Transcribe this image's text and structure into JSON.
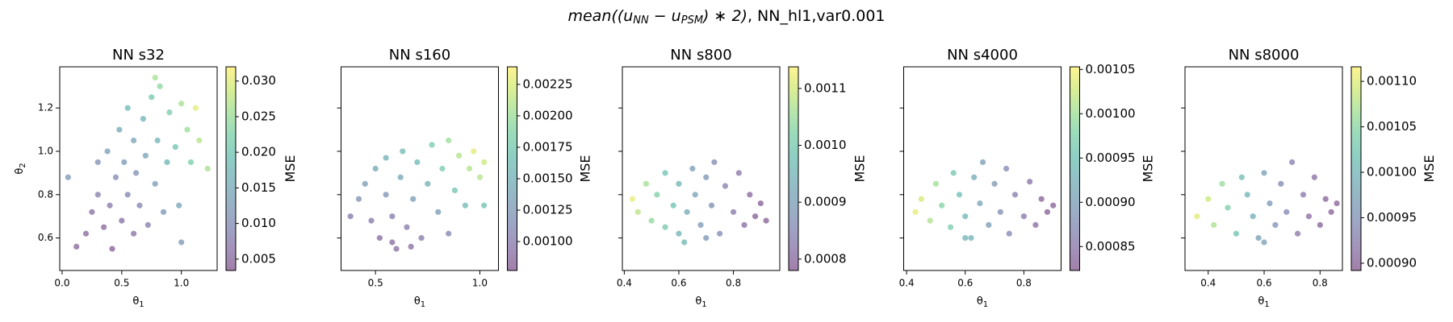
{
  "title": [
    {
      "text": "mean((u",
      "italic": true
    },
    {
      "text": "NN",
      "italic": true,
      "sub": true
    },
    {
      "text": " − u",
      "italic": true
    },
    {
      "text": "PSM",
      "italic": true,
      "sub": true
    },
    {
      "text": ") ∗ 2)",
      "italic": true
    },
    {
      "text": ", NN_hl1,var0.001",
      "italic": false
    }
  ],
  "chart_data": [
    {
      "type": "scatter",
      "title": "NN s32",
      "cmap": "viridis",
      "alpha": 0.5,
      "xlabel": {
        "text": "θ",
        "sub": "1"
      },
      "ylabel": {
        "text": "θ",
        "sub": "2"
      },
      "xlim": [
        -0.02,
        1.3
      ],
      "ylim": [
        0.45,
        1.39
      ],
      "xticks": [
        {
          "value": 0,
          "label": "0.0"
        },
        0.5,
        {
          "value": 1,
          "label": "1.0"
        }
      ],
      "yticks": [
        0.6,
        0.8,
        {
          "value": 1,
          "label": "1.0"
        },
        1.2
      ],
      "show_ytick_labels": true,
      "colorbar": {
        "label": "MSE",
        "clim": [
          0.0034,
          0.032
        ],
        "ticks": [
          0.005,
          {
            "value": 0.01,
            "label": "0.010"
          },
          0.015,
          {
            "value": 0.02,
            "label": "0.020"
          },
          0.025,
          {
            "value": 0.03,
            "label": "0.030"
          }
        ]
      },
      "x": [
        0.05,
        0.12,
        0.2,
        0.25,
        0.3,
        0.3,
        0.35,
        0.38,
        0.4,
        0.42,
        0.45,
        0.48,
        0.5,
        0.52,
        0.55,
        0.55,
        0.6,
        0.6,
        0.62,
        0.65,
        0.68,
        0.7,
        0.72,
        0.75,
        0.78,
        0.8,
        0.82,
        0.85,
        0.88,
        0.9,
        0.95,
        0.98,
        1.0,
        1.05,
        1.08,
        1.12,
        1.15,
        1.22,
        0.78,
        1.0
      ],
      "values": [
        0.88,
        0.56,
        0.62,
        0.72,
        0.8,
        0.95,
        0.65,
        1.0,
        0.75,
        0.55,
        0.88,
        1.1,
        0.68,
        0.95,
        0.8,
        1.2,
        0.62,
        1.05,
        0.9,
        0.75,
        1.15,
        0.98,
        0.66,
        1.25,
        0.85,
        1.05,
        1.3,
        0.72,
        0.95,
        1.18,
        1.02,
        0.75,
        1.22,
        1.1,
        0.95,
        1.2,
        1.05,
        0.92,
        1.34,
        0.58
      ],
      "color_values": [
        0.012,
        0.005,
        0.005,
        0.006,
        0.008,
        0.011,
        0.005,
        0.013,
        0.007,
        0.004,
        0.01,
        0.015,
        0.006,
        0.012,
        0.009,
        0.018,
        0.006,
        0.014,
        0.011,
        0.009,
        0.017,
        0.014,
        0.008,
        0.021,
        0.013,
        0.017,
        0.024,
        0.012,
        0.017,
        0.022,
        0.02,
        0.014,
        0.026,
        0.025,
        0.022,
        0.03,
        0.027,
        0.026,
        0.026,
        0.012
      ]
    },
    {
      "type": "scatter",
      "title": "NN s160",
      "cmap": "viridis",
      "alpha": 0.5,
      "xlabel": {
        "text": "θ",
        "sub": "1"
      },
      "xlim": [
        0.335,
        1.089
      ],
      "ylim": [
        0.45,
        1.39
      ],
      "xticks": [
        0.5,
        {
          "value": 1,
          "label": "1.0"
        }
      ],
      "yticks": [
        0.6,
        0.8,
        1,
        1.2
      ],
      "show_ytick_labels": false,
      "colorbar": {
        "label": "MSE",
        "clim": [
          0.00077,
          0.00239
        ],
        "ticks": [
          {
            "value": 0.001,
            "label": "0.00100"
          },
          0.00125,
          {
            "value": 0.0015,
            "label": "0.00150"
          },
          0.00175,
          {
            "value": 0.002,
            "label": "0.00200"
          },
          0.00225
        ]
      },
      "x": [
        0.38,
        0.42,
        0.45,
        0.48,
        0.5,
        0.52,
        0.55,
        0.55,
        0.58,
        0.6,
        0.62,
        0.63,
        0.65,
        0.68,
        0.7,
        0.72,
        0.75,
        0.77,
        0.8,
        0.82,
        0.85,
        0.85,
        0.88,
        0.9,
        0.93,
        0.95,
        0.97,
        1.0,
        1.02,
        1.02,
        0.67,
        0.58
      ],
      "values": [
        0.7,
        0.78,
        0.85,
        0.68,
        0.92,
        0.6,
        0.8,
        0.97,
        0.7,
        0.55,
        0.88,
        1.0,
        0.65,
        0.78,
        0.95,
        0.6,
        0.85,
        1.03,
        0.72,
        0.92,
        1.05,
        0.62,
        0.82,
        0.98,
        0.75,
        0.92,
        1.0,
        0.88,
        0.95,
        0.75,
        0.56,
        0.58
      ],
      "color_values": [
        0.001,
        0.0012,
        0.0013,
        0.001,
        0.0014,
        0.0009,
        0.0012,
        0.0015,
        0.001,
        0.0009,
        0.0014,
        0.0016,
        0.001,
        0.0013,
        0.0016,
        0.001,
        0.0015,
        0.0018,
        0.0013,
        0.0018,
        0.002,
        0.0011,
        0.0017,
        0.0021,
        0.0016,
        0.0021,
        0.0023,
        0.0021,
        0.0022,
        0.0017,
        0.0009,
        0.0009
      ]
    },
    {
      "type": "scatter",
      "title": "NN s800",
      "cmap": "viridis",
      "alpha": 0.5,
      "xlabel": {
        "text": "θ",
        "sub": "1"
      },
      "xlim": [
        0.393,
        0.97
      ],
      "ylim": [
        0.45,
        1.39
      ],
      "xticks": [
        0.4,
        0.6,
        0.8
      ],
      "yticks": [
        0.6,
        0.8,
        1,
        1.2
      ],
      "show_ytick_labels": false,
      "colorbar": {
        "label": "MSE",
        "clim": [
          0.00078,
          0.001138
        ],
        "ticks": [
          0.0008,
          0.0009,
          {
            "value": 0.001,
            "label": "0.0010"
          },
          0.0011
        ]
      },
      "x": [
        0.43,
        0.45,
        0.48,
        0.5,
        0.52,
        0.55,
        0.55,
        0.58,
        0.6,
        0.6,
        0.63,
        0.65,
        0.66,
        0.68,
        0.7,
        0.72,
        0.73,
        0.75,
        0.77,
        0.8,
        0.82,
        0.84,
        0.86,
        0.88,
        0.9,
        0.92,
        0.62,
        0.7
      ],
      "values": [
        0.78,
        0.72,
        0.85,
        0.68,
        0.8,
        0.9,
        0.65,
        0.75,
        0.85,
        0.62,
        0.72,
        0.92,
        0.8,
        0.66,
        0.88,
        0.75,
        0.95,
        0.62,
        0.84,
        0.72,
        0.9,
        0.66,
        0.8,
        0.7,
        0.76,
        0.68,
        0.58,
        0.6
      ],
      "color_values": [
        0.00112,
        0.00108,
        0.00106,
        0.00104,
        0.00102,
        0.00098,
        0.001,
        0.00098,
        0.00095,
        0.00095,
        0.00093,
        0.0009,
        0.00091,
        0.00089,
        0.00088,
        0.00087,
        0.00086,
        0.00086,
        0.00084,
        0.00083,
        0.00082,
        0.00081,
        0.0008,
        0.00079,
        0.00079,
        0.00079,
        0.00096,
        0.00088
      ]
    },
    {
      "type": "scatter",
      "title": "NN s4000",
      "cmap": "viridis",
      "alpha": 0.5,
      "xlabel": {
        "text": "θ",
        "sub": "1"
      },
      "xlim": [
        0.39,
        0.927
      ],
      "ylim": [
        0.45,
        1.39
      ],
      "xticks": [
        0.4,
        0.6,
        0.8
      ],
      "yticks": [
        0.6,
        0.8,
        1,
        1.2
      ],
      "show_ytick_labels": false,
      "colorbar": {
        "label": "MSE",
        "clim": [
          0.000823,
          0.001053
        ],
        "ticks": [
          0.00085,
          {
            "value": 0.0009,
            "label": "0.00090"
          },
          0.00095,
          {
            "value": 0.001,
            "label": "0.00100"
          },
          0.00105
        ]
      },
      "x": [
        0.43,
        0.45,
        0.48,
        0.5,
        0.52,
        0.55,
        0.56,
        0.58,
        0.6,
        0.62,
        0.63,
        0.65,
        0.66,
        0.68,
        0.7,
        0.72,
        0.74,
        0.75,
        0.77,
        0.8,
        0.82,
        0.84,
        0.86,
        0.88,
        0.9,
        0.6
      ],
      "values": [
        0.72,
        0.78,
        0.68,
        0.85,
        0.75,
        0.65,
        0.9,
        0.8,
        0.7,
        0.6,
        0.88,
        0.76,
        0.95,
        0.66,
        0.85,
        0.72,
        0.92,
        0.62,
        0.8,
        0.7,
        0.86,
        0.66,
        0.78,
        0.72,
        0.75,
        0.6
      ],
      "color_values": [
        0.00104,
        0.00103,
        0.00101,
        0.001,
        0.00098,
        0.00097,
        0.00096,
        0.00095,
        0.00094,
        0.00093,
        0.00092,
        0.00091,
        0.0009,
        0.0009,
        0.00089,
        0.00088,
        0.00087,
        0.00087,
        0.00086,
        0.00085,
        0.00085,
        0.00084,
        0.00083,
        0.00083,
        0.00083,
        0.00093
      ]
    },
    {
      "type": "scatter",
      "title": "NN s8000",
      "cmap": "viridis",
      "alpha": 0.5,
      "xlabel": {
        "text": "θ",
        "sub": "1"
      },
      "xlim": [
        0.317,
        0.88
      ],
      "ylim": [
        0.45,
        1.39
      ],
      "xticks": [
        0.4,
        0.6,
        0.8
      ],
      "yticks": [
        0.6,
        0.8,
        1,
        1.2
      ],
      "show_ytick_labels": false,
      "colorbar": {
        "label": "MSE",
        "clim": [
          0.000892,
          0.001116
        ],
        "ticks": [
          {
            "value": 0.0009,
            "label": "0.00090"
          },
          0.00095,
          {
            "value": 0.001,
            "label": "0.00100"
          },
          0.00105,
          {
            "value": 0.0011,
            "label": "0.00110"
          }
        ]
      },
      "x": [
        0.36,
        0.4,
        0.42,
        0.45,
        0.47,
        0.5,
        0.52,
        0.54,
        0.56,
        0.58,
        0.6,
        0.62,
        0.64,
        0.66,
        0.68,
        0.7,
        0.72,
        0.74,
        0.76,
        0.78,
        0.8,
        0.82,
        0.84,
        0.86,
        0.6
      ],
      "values": [
        0.7,
        0.78,
        0.66,
        0.85,
        0.74,
        0.62,
        0.88,
        0.8,
        0.7,
        0.6,
        0.9,
        0.76,
        0.66,
        0.85,
        0.72,
        0.95,
        0.62,
        0.8,
        0.7,
        0.88,
        0.66,
        0.78,
        0.72,
        0.76,
        0.58
      ],
      "color_values": [
        0.0011,
        0.00109,
        0.00107,
        0.00106,
        0.00104,
        0.00102,
        0.00101,
        0.001,
        0.00099,
        0.00097,
        0.00097,
        0.00096,
        0.00095,
        0.00094,
        0.00094,
        0.00093,
        0.00092,
        0.00092,
        0.00091,
        0.00091,
        0.0009,
        0.0009,
        0.0009,
        0.0009,
        0.00097
      ]
    }
  ]
}
